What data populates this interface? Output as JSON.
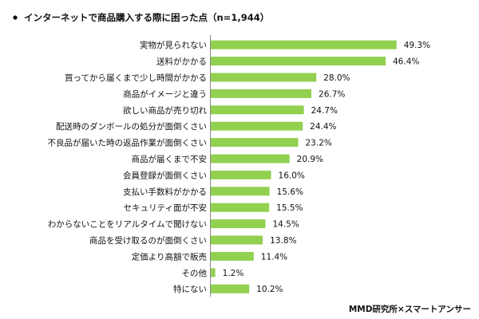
{
  "chart_data": {
    "type": "bar",
    "orientation": "horizontal",
    "title": "インターネットで商品購入する際に困った点（n=1,944）",
    "categories": [
      "実物が見られない",
      "送料がかかる",
      "買ってから届くまで少し時間がかかる",
      "商品がイメージと違う",
      "欲しい商品が売り切れ",
      "配送時のダンボールの処分が面倒くさい",
      "不良品が届いた時の返品作業が面倒くさい",
      "商品が届くまで不安",
      "会員登録が面倒くさい",
      "支払い手数料がかかる",
      "セキュリティ面が不安",
      "わからないことをリアルタイムで聞けない",
      "商品を受け取るのが面倒くさい",
      "定価より高額で販売",
      "その他",
      "特にない"
    ],
    "values": [
      49.3,
      46.4,
      28.0,
      26.7,
      24.7,
      24.4,
      23.2,
      20.9,
      16.0,
      15.6,
      15.5,
      14.5,
      13.8,
      11.4,
      1.2,
      10.2
    ],
    "value_labels": [
      "49.3%",
      "46.4%",
      "28.0%",
      "26.7%",
      "24.7%",
      "24.4%",
      "23.2%",
      "20.9%",
      "16.0%",
      "15.6%",
      "15.5%",
      "14.5%",
      "13.8%",
      "11.4%",
      "1.2%",
      "10.2%"
    ],
    "xlim": [
      0,
      50
    ],
    "bar_color": "#92d050",
    "grid": false,
    "legend": "none"
  },
  "source": "MMD研究所×スマートアンサー"
}
